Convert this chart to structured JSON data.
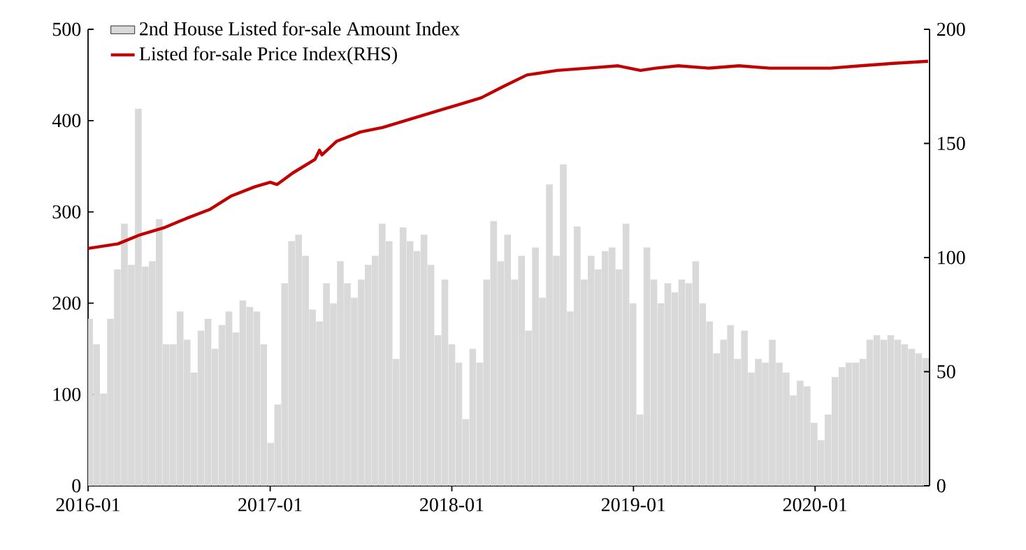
{
  "chart_data": {
    "type": "bar",
    "xlim": [
      "2016-01-01",
      "2020-08-18"
    ],
    "xticks": [
      "2016-01",
      "2017-01",
      "2018-01",
      "2019-01",
      "2020-01"
    ],
    "ylim": [
      0,
      500
    ],
    "yticks": [
      0,
      100,
      200,
      300,
      400,
      500
    ],
    "y2lim": [
      0,
      200
    ],
    "y2ticks": [
      0,
      50,
      100,
      150,
      200
    ],
    "legend": "top left",
    "series": [
      {
        "name": "2nd House Listed for-sale Amount Index",
        "color": "#d9d9d9",
        "x": [
          "2016-01-04",
          "2016-01-18",
          "2016-02-01",
          "2016-02-15",
          "2016-02-29",
          "2016-03-14",
          "2016-03-28",
          "2016-04-11",
          "2016-04-25",
          "2016-05-09",
          "2016-05-23",
          "2016-06-06",
          "2016-06-20",
          "2016-07-04",
          "2016-07-18",
          "2016-08-01",
          "2016-08-15",
          "2016-08-29",
          "2016-09-12",
          "2016-09-26",
          "2016-10-10",
          "2016-10-24",
          "2016-11-07",
          "2016-11-21",
          "2016-12-05",
          "2016-12-19",
          "2017-01-02",
          "2017-01-16",
          "2017-01-30",
          "2017-02-13",
          "2017-02-27",
          "2017-03-13",
          "2017-03-27",
          "2017-04-10",
          "2017-04-24",
          "2017-05-08",
          "2017-05-22",
          "2017-06-05",
          "2017-06-19",
          "2017-07-03",
          "2017-07-17",
          "2017-07-31",
          "2017-08-14",
          "2017-08-28",
          "2017-09-11",
          "2017-09-25",
          "2017-10-09",
          "2017-10-23",
          "2017-11-06",
          "2017-11-20",
          "2017-12-04",
          "2017-12-18",
          "2018-01-01",
          "2018-01-15",
          "2018-01-29",
          "2018-02-12",
          "2018-02-26",
          "2018-03-12",
          "2018-03-26",
          "2018-04-09",
          "2018-04-23",
          "2018-05-07",
          "2018-05-21",
          "2018-06-04",
          "2018-06-18",
          "2018-07-02",
          "2018-07-16",
          "2018-07-30",
          "2018-08-13",
          "2018-08-27",
          "2018-09-10",
          "2018-09-24",
          "2018-10-08",
          "2018-10-22",
          "2018-11-05",
          "2018-11-19",
          "2018-12-03",
          "2018-12-17",
          "2018-12-31",
          "2019-01-14",
          "2019-01-28",
          "2019-02-11",
          "2019-02-25",
          "2019-03-11",
          "2019-03-25",
          "2019-04-08",
          "2019-04-22",
          "2019-05-06",
          "2019-05-20",
          "2019-06-03",
          "2019-06-17",
          "2019-07-01",
          "2019-07-15",
          "2019-07-29",
          "2019-08-12",
          "2019-08-26",
          "2019-09-09",
          "2019-09-23",
          "2019-10-07",
          "2019-10-21",
          "2019-11-04",
          "2019-11-18",
          "2019-12-02",
          "2019-12-16",
          "2019-12-30",
          "2020-01-13",
          "2020-01-27",
          "2020-02-10",
          "2020-02-24",
          "2020-03-09",
          "2020-03-23",
          "2020-04-06",
          "2020-04-20",
          "2020-05-04",
          "2020-05-18",
          "2020-06-01",
          "2020-06-15",
          "2020-06-29",
          "2020-07-13",
          "2020-07-27",
          "2020-08-10"
        ],
        "values": [
          183,
          155,
          101,
          183,
          237,
          287,
          242,
          413,
          240,
          246,
          292,
          155,
          155,
          191,
          160,
          124,
          170,
          183,
          150,
          176,
          191,
          168,
          203,
          196,
          191,
          155,
          47,
          89,
          222,
          268,
          275,
          252,
          193,
          180,
          222,
          200,
          246,
          222,
          206,
          226,
          242,
          252,
          287,
          268,
          139,
          283,
          268,
          257,
          275,
          242,
          165,
          226,
          155,
          135,
          73,
          150,
          135,
          226,
          290,
          246,
          275,
          226,
          252,
          170,
          261,
          206,
          330,
          252,
          352,
          191,
          284,
          226,
          252,
          237,
          257,
          261,
          237,
          287,
          200,
          78,
          261,
          226,
          200,
          222,
          212,
          226,
          222,
          246,
          200,
          180,
          145,
          160,
          176,
          139,
          170,
          124,
          139,
          135,
          160,
          135,
          124,
          99,
          115,
          109,
          69,
          50,
          78,
          119,
          130,
          135,
          135,
          139,
          160,
          165,
          160,
          165,
          160,
          155,
          150,
          145,
          140
        ]
      },
      {
        "name": "Listed for-sale Price Index(RHS)",
        "type": "line",
        "axis": "y2",
        "color": "#c00000",
        "x": [
          "2016-01-01",
          "2016-03-01",
          "2016-04-15",
          "2016-06-01",
          "2016-07-15",
          "2016-09-01",
          "2016-10-15",
          "2016-12-01",
          "2017-01-01",
          "2017-01-15",
          "2017-02-15",
          "2017-04-01",
          "2017-04-10",
          "2017-04-15",
          "2017-05-15",
          "2017-07-01",
          "2017-08-15",
          "2017-10-15",
          "2017-12-15",
          "2018-01-15",
          "2018-03-01",
          "2018-04-15",
          "2018-06-01",
          "2018-08-01",
          "2018-10-01",
          "2018-12-01",
          "2019-01-15",
          "2019-02-15",
          "2019-04-01",
          "2019-06-01",
          "2019-08-01",
          "2019-10-01",
          "2019-12-01",
          "2020-02-01",
          "2020-04-01",
          "2020-06-01",
          "2020-08-15"
        ],
        "values": [
          104,
          106,
          110,
          113,
          117,
          121,
          127,
          131,
          133,
          132,
          137,
          143,
          147,
          145,
          151,
          155,
          157,
          161,
          165,
          167,
          170,
          175,
          180,
          182,
          183,
          184,
          182,
          183,
          184,
          183,
          184,
          183,
          183,
          183,
          184,
          185,
          186
        ]
      }
    ]
  }
}
